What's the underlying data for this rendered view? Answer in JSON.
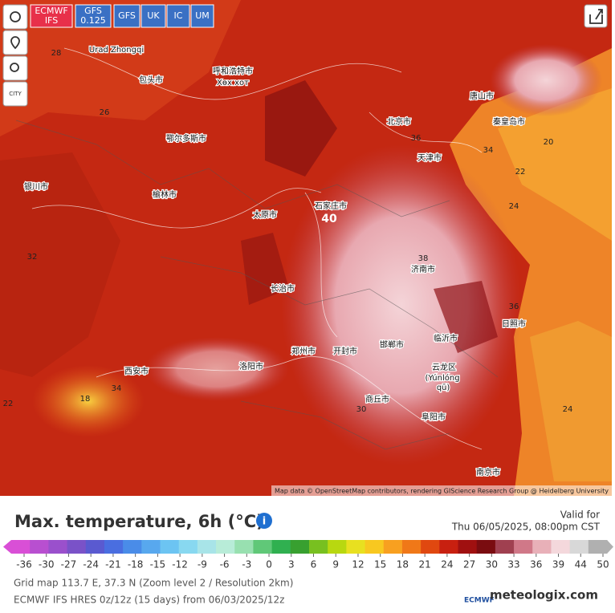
{
  "header": {
    "buttons": [
      {
        "lines": [
          "ECMWF",
          "IFS"
        ]
      },
      {
        "lines": [
          "GFS",
          "0.125"
        ]
      },
      {
        "lines": [
          "GFS"
        ]
      },
      {
        "lines": [
          "UK"
        ]
      },
      {
        "lines": [
          "IC"
        ]
      },
      {
        "lines": [
          "UM"
        ]
      }
    ],
    "city": "CITY"
  },
  "map": {
    "places": [
      "Urad Zhongqi",
      "包头市",
      "Хөх хот",
      "呼和浩特市",
      "鄂尔多斯市",
      "北京市",
      "天津市",
      "石家庄市",
      "太原市",
      "济南市",
      "郑州市",
      "西安市",
      "银川市",
      "榆林市",
      "洛阳市",
      "开封市",
      "临沂市",
      "日照市",
      "云龙区",
      "(Yúnlóng",
      "qū)",
      "南京市",
      "唐山市",
      "秦皇岛市",
      "邯郸市",
      "商丘市",
      "长治市",
      "阜阳市"
    ],
    "isotherms": [
      40,
      36,
      34,
      24,
      22,
      20,
      18,
      28,
      38,
      32,
      26,
      30,
      24,
      22,
      36,
      34
    ],
    "attribution": "Map data © OpenStreetMap contributors, rendering GIScience Research Group @ Heidelberg University"
  },
  "panel": {
    "title": "Max. temperature, 6h (°C)",
    "valid_label": "Valid for",
    "valid_time": "Thu 06/05/2025, 08:00pm CST",
    "scale_ticks": [
      -36,
      -30,
      -27,
      -24,
      -21,
      -18,
      -15,
      -12,
      -9,
      -6,
      -3,
      0,
      3,
      6,
      9,
      12,
      15,
      18,
      21,
      24,
      27,
      30,
      33,
      36,
      39,
      44,
      50
    ],
    "scale_colors": [
      "#d94fd6",
      "#b84fd0",
      "#9a50cc",
      "#7a52c8",
      "#5a5ad0",
      "#4a6ee0",
      "#4a8ce8",
      "#58a8ee",
      "#6cc4f2",
      "#88d8f0",
      "#a8e4e8",
      "#b8ecd8",
      "#98e0b0",
      "#60c878",
      "#30b050",
      "#38a030",
      "#78c020",
      "#b8d810",
      "#e8e020",
      "#f8c820",
      "#f8a020",
      "#f07818",
      "#e04810",
      "#c82010",
      "#a01010",
      "#7a0c10",
      "#a04050",
      "#d07888",
      "#e8b0b8",
      "#f4d8dc",
      "#d8d8d8",
      "#b0b0b0"
    ],
    "footer": [
      "Grid map 113.7 E, 37.3 N (Zoom level 2 / Resolution 2km)",
      "ECMWF IFS HRES 0z/12z (15 days) from 06/03/2025/12z"
    ],
    "brand": "meteologix.com",
    "logo": "ECMWF"
  }
}
